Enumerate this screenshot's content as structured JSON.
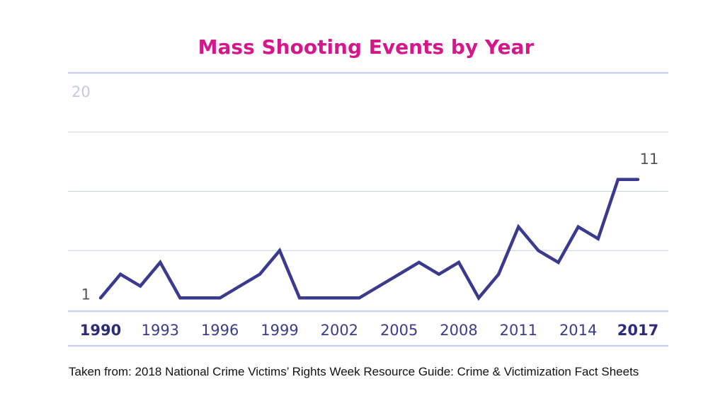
{
  "chart_data": {
    "type": "line",
    "title": "Mass Shooting Events by Year",
    "x": [
      1990,
      1991,
      1992,
      1993,
      1994,
      1995,
      1996,
      1997,
      1998,
      1999,
      2000,
      2001,
      2002,
      2003,
      2004,
      2005,
      2006,
      2007,
      2008,
      2009,
      2010,
      2011,
      2012,
      2013,
      2014,
      2015,
      2016,
      2017
    ],
    "series": [
      {
        "values": [
          1,
          3,
          2,
          4,
          1,
          1,
          1,
          2,
          3,
          5,
          1,
          1,
          1,
          1,
          2,
          3,
          4,
          3,
          4,
          1,
          3,
          7,
          5,
          4,
          7,
          6,
          11,
          11
        ]
      }
    ],
    "x_tick_labels": [
      "1990",
      "1993",
      "1996",
      "1999",
      "2002",
      "2005",
      "2008",
      "2011",
      "2014",
      "2017"
    ],
    "x_tick_bold": [
      "1990",
      "2017"
    ],
    "y_tick_labels": [
      "20"
    ],
    "data_labels": [
      "1",
      "11"
    ],
    "ylim": [
      0,
      20
    ],
    "grid": true,
    "line_color": "#3a3b8e",
    "title_color": "#d6168b",
    "gridline_color": "#c9d3e8"
  },
  "source_note": "Taken from: 2018 National Crime Victims’ Rights Week Resource Guide: Crime & Victimization Fact Sheets"
}
